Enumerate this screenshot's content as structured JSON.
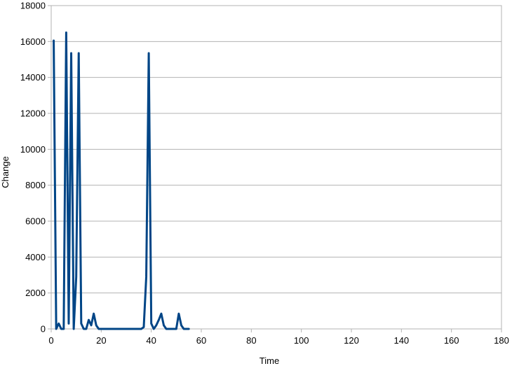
{
  "chart_data": {
    "type": "line",
    "xlabel": "Time",
    "ylabel": "Change",
    "xlim": [
      0,
      180
    ],
    "ylim": [
      0,
      18000
    ],
    "xticks": [
      0,
      20,
      40,
      60,
      80,
      100,
      120,
      140,
      160,
      180
    ],
    "yticks": [
      0,
      2000,
      4000,
      6000,
      8000,
      10000,
      12000,
      14000,
      16000,
      18000
    ],
    "grid": "horizontal",
    "legend": "none",
    "series": [
      {
        "color": "#004586",
        "x": [
          1,
          2,
          3,
          4,
          5,
          6,
          7,
          8,
          9,
          10,
          11,
          12,
          13,
          14,
          15,
          16,
          17,
          18,
          19,
          20,
          21,
          22,
          23,
          24,
          25,
          26,
          27,
          28,
          29,
          30,
          31,
          32,
          33,
          34,
          35,
          36,
          37,
          38,
          39,
          40,
          41,
          42,
          43,
          44,
          45,
          46,
          47,
          48,
          49,
          50,
          51,
          52,
          53,
          54,
          55
        ],
        "y": [
          16050,
          0,
          300,
          0,
          0,
          16500,
          300,
          15350,
          0,
          2900,
          15350,
          300,
          0,
          0,
          500,
          200,
          850,
          200,
          0,
          0,
          0,
          0,
          0,
          0,
          0,
          0,
          0,
          0,
          0,
          0,
          0,
          0,
          0,
          0,
          0,
          0,
          100,
          2900,
          15350,
          300,
          0,
          200,
          500,
          850,
          200,
          0,
          0,
          0,
          0,
          0,
          850,
          200,
          0,
          0,
          0
        ]
      }
    ]
  }
}
